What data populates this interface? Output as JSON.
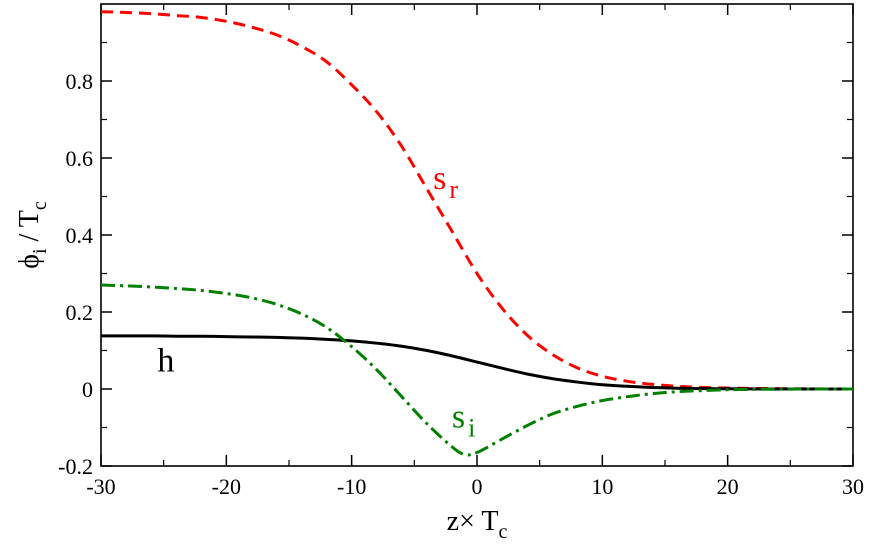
{
  "chart_data": {
    "type": "line",
    "xlim": [
      -30,
      30
    ],
    "ylim": [
      -0.2,
      1.0
    ],
    "xticks": [
      -30,
      -20,
      -10,
      0,
      10,
      20,
      30
    ],
    "xtick_labels": [
      "-30",
      "-20",
      "-10",
      "0",
      "10",
      "20",
      "30"
    ],
    "yticks": [
      -0.2,
      0,
      0.2,
      0.4,
      0.6,
      0.8
    ],
    "ytick_labels": [
      "-0.2",
      "0",
      "0.2",
      "0.4",
      "0.6",
      "0.8"
    ],
    "xlabel": {
      "main": "z× T",
      "sub": "c"
    },
    "ylabel": {
      "main": "ϕ",
      "sub1": "i",
      "mid": " / T",
      "sub2": "c"
    },
    "grid": false,
    "series": [
      {
        "name": "s_r",
        "label": {
          "main": "s",
          "sub": "r"
        },
        "color": "#ff0000",
        "dash": "dashed",
        "x": [
          -30,
          -28,
          -26,
          -24,
          -22,
          -20,
          -18,
          -16,
          -14,
          -12,
          -10,
          -8,
          -6,
          -4,
          -2,
          0,
          2,
          4,
          6,
          8,
          10,
          12,
          14,
          16,
          18,
          20,
          22,
          24,
          26,
          28,
          30
        ],
        "values": [
          0.98,
          0.978,
          0.975,
          0.97,
          0.965,
          0.955,
          0.94,
          0.92,
          0.89,
          0.85,
          0.79,
          0.72,
          0.63,
          0.52,
          0.41,
          0.3,
          0.21,
          0.14,
          0.09,
          0.055,
          0.033,
          0.02,
          0.012,
          0.007,
          0.004,
          0.0025,
          0.0015,
          0.001,
          0.0005,
          0.0002,
          0.0
        ]
      },
      {
        "name": "h",
        "label": {
          "main": "h",
          "sub": ""
        },
        "color": "#000000",
        "dash": "solid",
        "x": [
          -30,
          -28,
          -26,
          -24,
          -22,
          -20,
          -18,
          -16,
          -14,
          -12,
          -10,
          -8,
          -6,
          -4,
          -2,
          0,
          2,
          4,
          6,
          8,
          10,
          12,
          14,
          16,
          18,
          20,
          22,
          24,
          26,
          28,
          30
        ],
        "values": [
          0.138,
          0.138,
          0.138,
          0.137,
          0.137,
          0.136,
          0.135,
          0.134,
          0.132,
          0.129,
          0.125,
          0.119,
          0.111,
          0.1,
          0.086,
          0.07,
          0.054,
          0.039,
          0.027,
          0.018,
          0.011,
          0.007,
          0.004,
          0.002,
          0.001,
          0.0005,
          0.0002,
          0.0001,
          0.0,
          0.0,
          0.0
        ]
      },
      {
        "name": "s_i",
        "label": {
          "main": "s",
          "sub": "i"
        },
        "color": "#008000",
        "dash": "dashdot",
        "x": [
          -30,
          -28,
          -26,
          -24,
          -22,
          -20,
          -18,
          -16,
          -14,
          -12,
          -10,
          -8,
          -6,
          -4,
          -2,
          -1,
          0,
          2,
          4,
          6,
          8,
          10,
          12,
          14,
          16,
          18,
          20,
          22,
          24,
          26,
          28,
          30
        ],
        "values": [
          0.27,
          0.268,
          0.265,
          0.261,
          0.256,
          0.248,
          0.237,
          0.22,
          0.195,
          0.16,
          0.11,
          0.05,
          -0.02,
          -0.09,
          -0.15,
          -0.17,
          -0.165,
          -0.13,
          -0.095,
          -0.065,
          -0.045,
          -0.03,
          -0.02,
          -0.012,
          -0.007,
          -0.004,
          -0.002,
          -0.001,
          -0.0005,
          0.0,
          0.0,
          0.0
        ]
      }
    ],
    "annotations": [
      {
        "series": "s_r",
        "x": -3.5,
        "y": 0.52
      },
      {
        "series": "h",
        "x": -25.5,
        "y": 0.045
      },
      {
        "series": "s_i",
        "x": -2,
        "y": -0.1
      }
    ]
  }
}
